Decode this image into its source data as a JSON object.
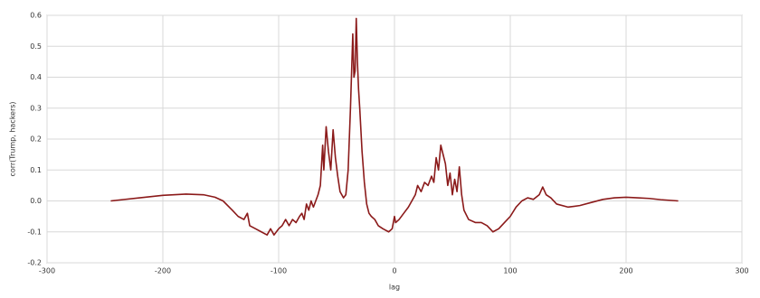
{
  "chart_data": {
    "type": "line",
    "xlabel": "lag",
    "ylabel": "corr(Trump, hackers)",
    "x": [
      -245,
      -220,
      -200,
      -180,
      -165,
      -155,
      -148,
      -140,
      -135,
      -130,
      -127,
      -125,
      -120,
      -115,
      -110,
      -107,
      -104,
      -100,
      -97,
      -94,
      -91,
      -88,
      -85,
      -82,
      -80,
      -78,
      -76,
      -74,
      -72,
      -70,
      -68,
      -66,
      -64,
      -62,
      -61,
      -59,
      -57,
      -55,
      -53,
      -51,
      -49,
      -47,
      -44,
      -42,
      -40,
      -38,
      -36,
      -35,
      -34,
      -33,
      -32,
      -31,
      -30,
      -28,
      -26,
      -24,
      -22,
      -20,
      -17,
      -14,
      -10,
      -5,
      -2,
      0,
      1,
      4,
      8,
      12,
      15,
      18,
      20,
      23,
      26,
      29,
      32,
      34,
      36,
      38,
      40,
      42,
      44,
      46,
      48,
      50,
      52,
      54,
      56,
      58,
      60,
      64,
      70,
      75,
      80,
      85,
      90,
      95,
      100,
      105,
      110,
      115,
      120,
      125,
      128,
      131,
      135,
      140,
      150,
      160,
      170,
      180,
      190,
      200,
      210,
      220,
      230,
      245
    ],
    "series": [
      {
        "color": "#8b1a1a",
        "values": [
          0.0,
          0.01,
          0.018,
          0.022,
          0.02,
          0.012,
          0.0,
          -0.03,
          -0.05,
          -0.06,
          -0.04,
          -0.08,
          -0.09,
          -0.1,
          -0.11,
          -0.09,
          -0.11,
          -0.09,
          -0.08,
          -0.06,
          -0.08,
          -0.06,
          -0.07,
          -0.05,
          -0.04,
          -0.06,
          -0.01,
          -0.03,
          0.0,
          -0.02,
          0.0,
          0.02,
          0.05,
          0.18,
          0.1,
          0.24,
          0.16,
          0.1,
          0.23,
          0.14,
          0.08,
          0.03,
          0.01,
          0.02,
          0.1,
          0.3,
          0.54,
          0.4,
          0.42,
          0.59,
          0.45,
          0.36,
          0.3,
          0.16,
          0.06,
          -0.01,
          -0.04,
          -0.05,
          -0.06,
          -0.08,
          -0.09,
          -0.1,
          -0.09,
          -0.05,
          -0.07,
          -0.06,
          -0.04,
          -0.02,
          0.0,
          0.02,
          0.05,
          0.03,
          0.06,
          0.05,
          0.08,
          0.06,
          0.14,
          0.1,
          0.18,
          0.15,
          0.12,
          0.05,
          0.09,
          0.02,
          0.07,
          0.03,
          0.11,
          0.02,
          -0.03,
          -0.06,
          -0.07,
          -0.07,
          -0.08,
          -0.1,
          -0.09,
          -0.07,
          -0.05,
          -0.02,
          0.0,
          0.01,
          0.005,
          0.02,
          0.045,
          0.02,
          0.01,
          -0.01,
          -0.02,
          -0.015,
          -0.005,
          0.005,
          0.01,
          0.012,
          0.01,
          0.008,
          0.004,
          0.0
        ]
      }
    ],
    "xlim": [
      -300,
      300
    ],
    "xticks": [
      -300,
      -200,
      -100,
      0,
      100,
      200,
      300
    ],
    "ylim": [
      -0.2,
      0.6
    ],
    "yticks": [
      -0.2,
      -0.1,
      {
        "value": 0,
        "label": "0.0"
      },
      0.1,
      0.2,
      0.3,
      0.4,
      0.5,
      0.6
    ],
    "grid": true
  }
}
